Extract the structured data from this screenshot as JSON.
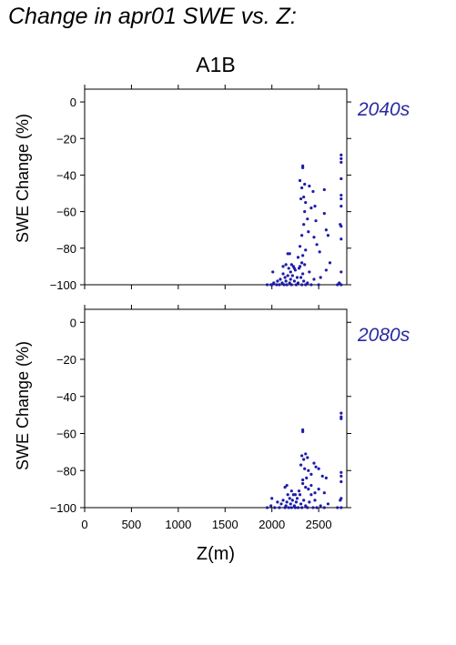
{
  "page_title": "Change in apr01 SWE vs. Z:",
  "colors": {
    "points": "#1c1ca8",
    "period_text": "#2a2aa0",
    "axes": "#000000"
  },
  "chart_data": [
    {
      "type": "scatter",
      "title": "A1B",
      "period": "2040s",
      "xlabel": "",
      "ylabel": "SWE Change (%)",
      "xlim": [
        0,
        2800
      ],
      "ylim": [
        -100,
        7
      ],
      "yticks": [
        0,
        -20,
        -40,
        -60,
        -80,
        -100
      ],
      "x_ticks_labeled": false,
      "points": [
        [
          1950,
          -100
        ],
        [
          1990,
          -100
        ],
        [
          2000,
          -100
        ],
        [
          2020,
          -99
        ],
        [
          2050,
          -100
        ],
        [
          2060,
          -98
        ],
        [
          2080,
          -100
        ],
        [
          2090,
          -97
        ],
        [
          2110,
          -99
        ],
        [
          2120,
          -94
        ],
        [
          2130,
          -100
        ],
        [
          2140,
          -96
        ],
        [
          2150,
          -98
        ],
        [
          2160,
          -100
        ],
        [
          2170,
          -95
        ],
        [
          2180,
          -91
        ],
        [
          2190,
          -99
        ],
        [
          2200,
          -97
        ],
        [
          2210,
          -100
        ],
        [
          2220,
          -95
        ],
        [
          2230,
          -90
        ],
        [
          2240,
          -98
        ],
        [
          2250,
          -92
        ],
        [
          2260,
          -100
        ],
        [
          2270,
          -96
        ],
        [
          2280,
          -99
        ],
        [
          2300,
          -90
        ],
        [
          2310,
          -96
        ],
        [
          2320,
          -100
        ],
        [
          2330,
          -94
        ],
        [
          2340,
          -98
        ],
        [
          2360,
          -100
        ],
        [
          2380,
          -99
        ],
        [
          2400,
          -93
        ],
        [
          2420,
          -100
        ],
        [
          2450,
          -97
        ],
        [
          2500,
          -100
        ],
        [
          2520,
          -96
        ],
        [
          2700,
          -100
        ],
        [
          2740,
          -100
        ],
        [
          2010,
          -93
        ],
        [
          2120,
          -90
        ],
        [
          2150,
          -89
        ],
        [
          2170,
          -83
        ],
        [
          2190,
          -83
        ],
        [
          2210,
          -89
        ],
        [
          2240,
          -91
        ],
        [
          2200,
          -93
        ],
        [
          2280,
          -85
        ],
        [
          2290,
          -91
        ],
        [
          2320,
          -88
        ],
        [
          2350,
          -89
        ],
        [
          2330,
          -36
        ],
        [
          2330,
          -35
        ],
        [
          2300,
          -43
        ],
        [
          2320,
          -47
        ],
        [
          2350,
          -45
        ],
        [
          2340,
          -52
        ],
        [
          2310,
          -53
        ],
        [
          2360,
          -55
        ],
        [
          2400,
          -46
        ],
        [
          2420,
          -58
        ],
        [
          2350,
          -60
        ],
        [
          2380,
          -64
        ],
        [
          2340,
          -67
        ],
        [
          2390,
          -71
        ],
        [
          2320,
          -73
        ],
        [
          2300,
          -79
        ],
        [
          2360,
          -81
        ],
        [
          2330,
          -84
        ],
        [
          2440,
          -49
        ],
        [
          2460,
          -57
        ],
        [
          2470,
          -65
        ],
        [
          2450,
          -74
        ],
        [
          2480,
          -78
        ],
        [
          2510,
          -82
        ],
        [
          2560,
          -48
        ],
        [
          2560,
          -61
        ],
        [
          2580,
          -70
        ],
        [
          2600,
          -73
        ],
        [
          2620,
          -88
        ],
        [
          2580,
          -92
        ],
        [
          2740,
          -29
        ],
        [
          2740,
          -31
        ],
        [
          2740,
          -33
        ],
        [
          2740,
          -42
        ],
        [
          2740,
          -51
        ],
        [
          2740,
          -53
        ],
        [
          2740,
          -57
        ],
        [
          2730,
          -67
        ],
        [
          2740,
          -68
        ],
        [
          2740,
          -75
        ],
        [
          2740,
          -93
        ],
        [
          2720,
          -99
        ]
      ]
    },
    {
      "type": "scatter",
      "title": "",
      "period": "2080s",
      "xlabel": "Z(m)",
      "ylabel": "SWE Change (%)",
      "xlim": [
        0,
        2800
      ],
      "ylim": [
        -100,
        7
      ],
      "xticks": [
        0,
        500,
        1000,
        1500,
        2000,
        2500
      ],
      "yticks": [
        0,
        -20,
        -40,
        -60,
        -80,
        -100
      ],
      "x_ticks_labeled": true,
      "points": [
        [
          1950,
          -100
        ],
        [
          1990,
          -99
        ],
        [
          2000,
          -95
        ],
        [
          2030,
          -100
        ],
        [
          2060,
          -97
        ],
        [
          2080,
          -100
        ],
        [
          2100,
          -98
        ],
        [
          2120,
          -96
        ],
        [
          2140,
          -100
        ],
        [
          2150,
          -99
        ],
        [
          2160,
          -97
        ],
        [
          2170,
          -93
        ],
        [
          2180,
          -100
        ],
        [
          2190,
          -95
        ],
        [
          2200,
          -98
        ],
        [
          2210,
          -100
        ],
        [
          2220,
          -96
        ],
        [
          2230,
          -93
        ],
        [
          2240,
          -99
        ],
        [
          2250,
          -100
        ],
        [
          2260,
          -97
        ],
        [
          2270,
          -95
        ],
        [
          2280,
          -100
        ],
        [
          2300,
          -93
        ],
        [
          2310,
          -98
        ],
        [
          2320,
          -100
        ],
        [
          2340,
          -96
        ],
        [
          2360,
          -99
        ],
        [
          2380,
          -100
        ],
        [
          2400,
          -97
        ],
        [
          2420,
          -93
        ],
        [
          2440,
          -100
        ],
        [
          2460,
          -96
        ],
        [
          2480,
          -100
        ],
        [
          2520,
          -99
        ],
        [
          2560,
          -100
        ],
        [
          2600,
          -98
        ],
        [
          2700,
          -100
        ],
        [
          2740,
          -100
        ],
        [
          2730,
          -96
        ],
        [
          2140,
          -89
        ],
        [
          2160,
          -88
        ],
        [
          2210,
          -91
        ],
        [
          2250,
          -93
        ],
        [
          2290,
          -91
        ],
        [
          2330,
          -87
        ],
        [
          2360,
          -89
        ],
        [
          2390,
          -90
        ],
        [
          2420,
          -88
        ],
        [
          2460,
          -92
        ],
        [
          2500,
          -90
        ],
        [
          2560,
          -92
        ],
        [
          2330,
          -58
        ],
        [
          2330,
          -59
        ],
        [
          2320,
          -72
        ],
        [
          2340,
          -74
        ],
        [
          2360,
          -71
        ],
        [
          2380,
          -73
        ],
        [
          2310,
          -77
        ],
        [
          2350,
          -79
        ],
        [
          2390,
          -80
        ],
        [
          2420,
          -82
        ],
        [
          2330,
          -85
        ],
        [
          2370,
          -84
        ],
        [
          2450,
          -76
        ],
        [
          2470,
          -78
        ],
        [
          2500,
          -79
        ],
        [
          2540,
          -83
        ],
        [
          2580,
          -84
        ],
        [
          2740,
          -49
        ],
        [
          2740,
          -51
        ],
        [
          2740,
          -52
        ],
        [
          2740,
          -81
        ],
        [
          2740,
          -83
        ],
        [
          2740,
          -86
        ],
        [
          2740,
          -95
        ]
      ]
    }
  ]
}
